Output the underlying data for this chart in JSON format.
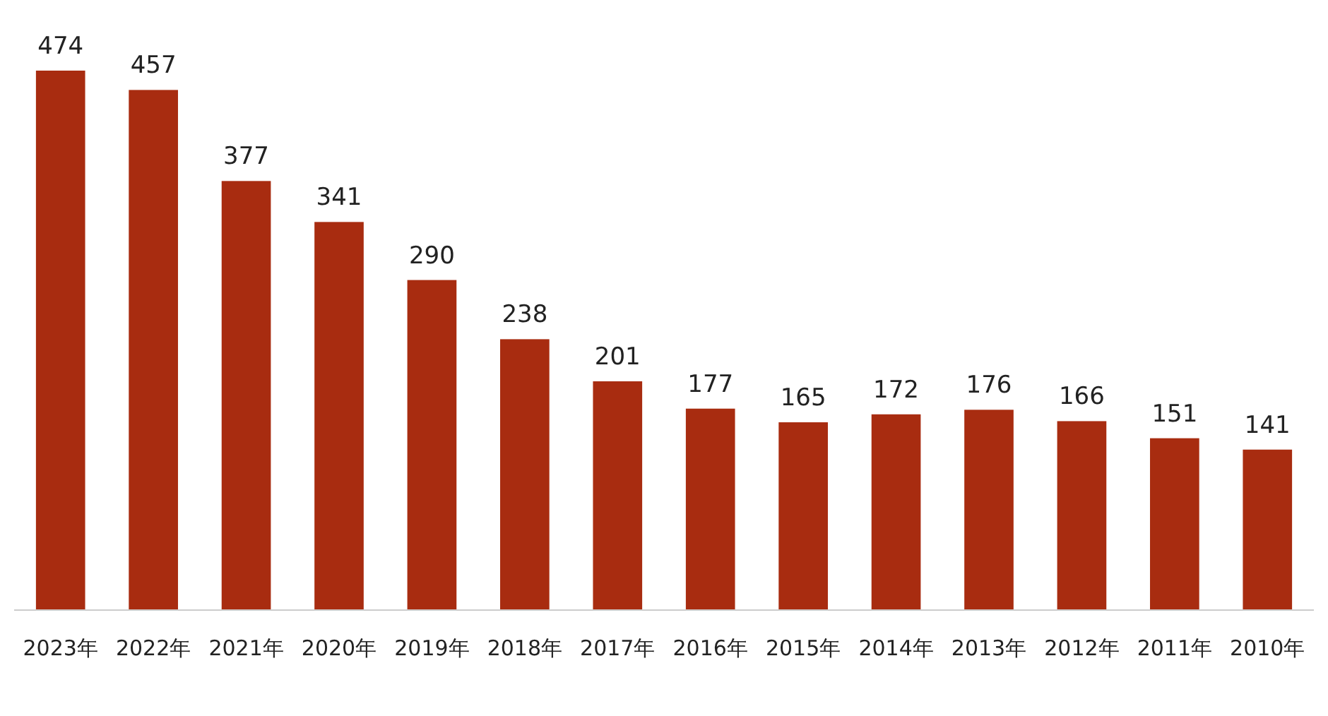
{
  "chart_data": {
    "type": "bar",
    "categories": [
      "2023年",
      "2022年",
      "2021年",
      "2020年",
      "2019年",
      "2018年",
      "2017年",
      "2016年",
      "2015年",
      "2014年",
      "2013年",
      "2012年",
      "2011年",
      "2010年"
    ],
    "values": [
      474,
      457,
      377,
      341,
      290,
      238,
      201,
      177,
      165,
      172,
      176,
      166,
      151,
      141
    ],
    "color": "#a82c10",
    "data_labels": true
  }
}
